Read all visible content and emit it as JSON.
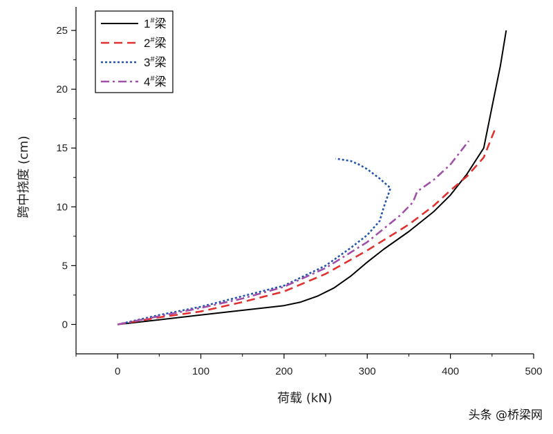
{
  "chart_data": {
    "type": "line",
    "title": "",
    "xlabel": "荷载 (kN)",
    "ylabel": "跨中挠度 (cm)",
    "xlim": [
      -50,
      500
    ],
    "ylim": [
      -2.5,
      27
    ],
    "xticks": [
      0,
      100,
      200,
      300,
      400,
      500
    ],
    "xtick_labels": [
      "0",
      "100",
      "200",
      "300",
      "400",
      "500"
    ],
    "yticks": [
      0,
      5,
      10,
      15,
      20,
      25
    ],
    "ytick_labels": [
      "0",
      "5",
      "10",
      "15",
      "20",
      "25"
    ],
    "grid": false,
    "legend_position": "top-left",
    "series": [
      {
        "name": "1",
        "sup": "#",
        "suffix": "梁",
        "color": "#000000",
        "dash": "solid",
        "x": [
          0,
          50,
          100,
          150,
          200,
          220,
          240,
          260,
          280,
          300,
          320,
          350,
          380,
          400,
          420,
          440,
          450,
          460,
          467
        ],
        "y": [
          0,
          0.4,
          0.8,
          1.2,
          1.6,
          1.9,
          2.4,
          3.1,
          4.1,
          5.3,
          6.4,
          7.9,
          9.6,
          11.0,
          12.8,
          15.0,
          18.5,
          22.0,
          25.0
        ]
      },
      {
        "name": "2",
        "sup": "#",
        "suffix": "梁",
        "color": "#e03030",
        "dash": "dashed",
        "x": [
          0,
          50,
          100,
          150,
          200,
          250,
          300,
          350,
          380,
          400,
          420,
          440,
          453
        ],
        "y": [
          0,
          0.6,
          1.1,
          1.9,
          2.8,
          4.3,
          6.3,
          8.5,
          10.1,
          11.4,
          12.6,
          14.2,
          16.5
        ]
      },
      {
        "name": "3",
        "sup": "#",
        "suffix": "梁",
        "color": "#2255aa",
        "dash": "dotted",
        "x": [
          0,
          50,
          100,
          150,
          200,
          250,
          280,
          300,
          315,
          320,
          328,
          315,
          300,
          290,
          280,
          262
        ],
        "y": [
          0,
          0.8,
          1.5,
          2.4,
          3.3,
          5.0,
          6.5,
          7.6,
          8.8,
          10.0,
          11.6,
          12.4,
          13.2,
          13.6,
          13.9,
          14.1
        ]
      },
      {
        "name": "4",
        "sup": "#",
        "suffix": "梁",
        "color": "#a050a8",
        "dash": "dashdot",
        "x": [
          0,
          50,
          100,
          150,
          200,
          250,
          300,
          340,
          355,
          360,
          380,
          400,
          422
        ],
        "y": [
          0,
          0.7,
          1.4,
          2.2,
          3.2,
          4.8,
          7.0,
          9.3,
          10.4,
          11.3,
          12.3,
          13.6,
          15.6
        ]
      }
    ]
  },
  "watermark": {
    "text": "头条 @桥梁网"
  }
}
